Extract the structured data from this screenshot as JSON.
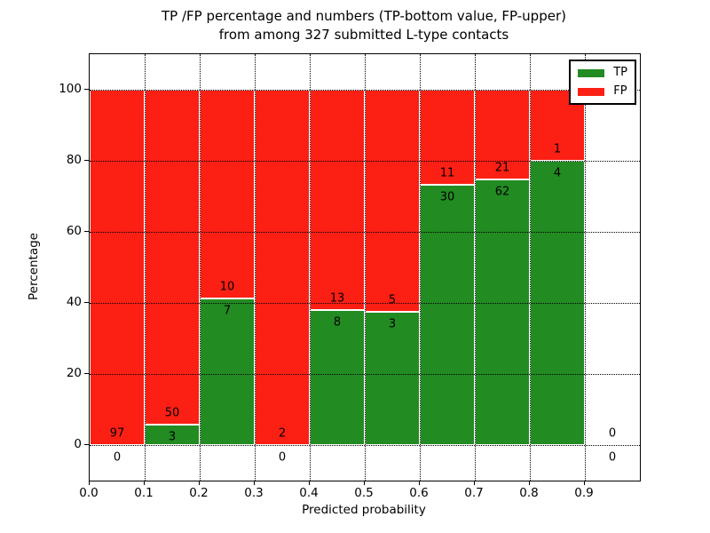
{
  "chart_data": {
    "type": "bar",
    "stacked": true,
    "title_line1": "TP /FP percentage and numbers (TP-bottom value, FP-upper)",
    "title_line2": "from among 327 submitted L-type contacts",
    "xlabel": "Predicted probability",
    "ylabel": "Percentage",
    "total_contacts": 327,
    "xlim": [
      0.0,
      1.0
    ],
    "ylim": [
      -10,
      110
    ],
    "grid": "dotted, both axes, drawn over bars",
    "bar_edge_color": "#ffffff",
    "xticks": [
      "0.0",
      "0.1",
      "0.2",
      "0.3",
      "0.4",
      "0.5",
      "0.6",
      "0.7",
      "0.8",
      "0.9"
    ],
    "ytick_values": [
      0,
      20,
      40,
      60,
      80,
      100
    ],
    "ytick_labels": [
      "0",
      "20",
      "40",
      "60",
      "80",
      "100"
    ],
    "legend": {
      "position": "upper right",
      "items": [
        {
          "label": "TP",
          "color": "#228b22"
        },
        {
          "label": "FP",
          "color": "#fb1f14"
        }
      ]
    },
    "bins": [
      {
        "range": [
          0.0,
          0.1
        ],
        "tp": 0,
        "fp": 97
      },
      {
        "range": [
          0.1,
          0.2
        ],
        "tp": 3,
        "fp": 50
      },
      {
        "range": [
          0.2,
          0.3
        ],
        "tp": 7,
        "fp": 10
      },
      {
        "range": [
          0.3,
          0.4
        ],
        "tp": 0,
        "fp": 2
      },
      {
        "range": [
          0.4,
          0.5
        ],
        "tp": 8,
        "fp": 13
      },
      {
        "range": [
          0.5,
          0.6
        ],
        "tp": 3,
        "fp": 5
      },
      {
        "range": [
          0.6,
          0.7
        ],
        "tp": 30,
        "fp": 11
      },
      {
        "range": [
          0.7,
          0.8
        ],
        "tp": 62,
        "fp": 21
      },
      {
        "range": [
          0.8,
          0.9
        ],
        "tp": 4,
        "fp": 1
      },
      {
        "range": [
          0.9,
          1.0
        ],
        "tp": 0,
        "fp": 0
      }
    ]
  }
}
